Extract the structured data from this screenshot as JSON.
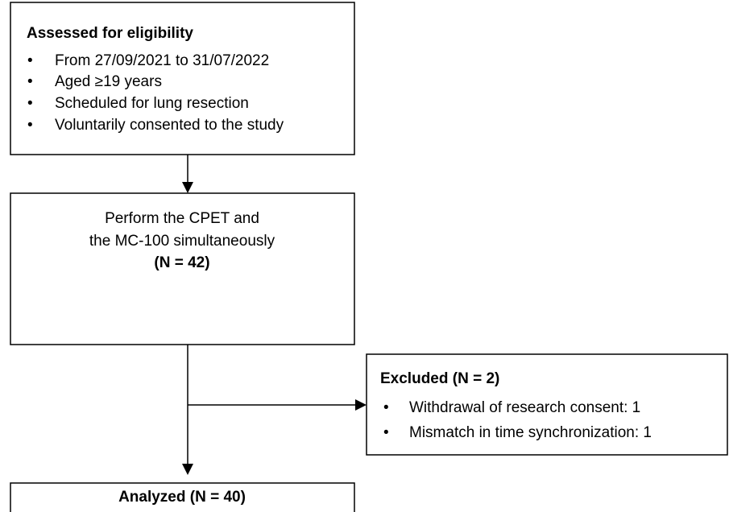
{
  "nodes": [
    {
      "title": "Assessed for eligibility",
      "items": [
        "From 27/09/2021 to 31/07/2022",
        "Aged ≥19 years",
        "Scheduled for lung resection",
        "Voluntarily consented to the study"
      ]
    },
    {
      "lines": [
        "Perform the CPET and",
        "the MC-100 simultaneously"
      ],
      "count": "(N = 42)"
    },
    {
      "title": "Excluded (N = 2)",
      "items": [
        "Withdrawal of research consent: 1",
        "Mismatch in time synchronization: 1"
      ]
    },
    {
      "title": "Analyzed (N = 40)"
    }
  ]
}
